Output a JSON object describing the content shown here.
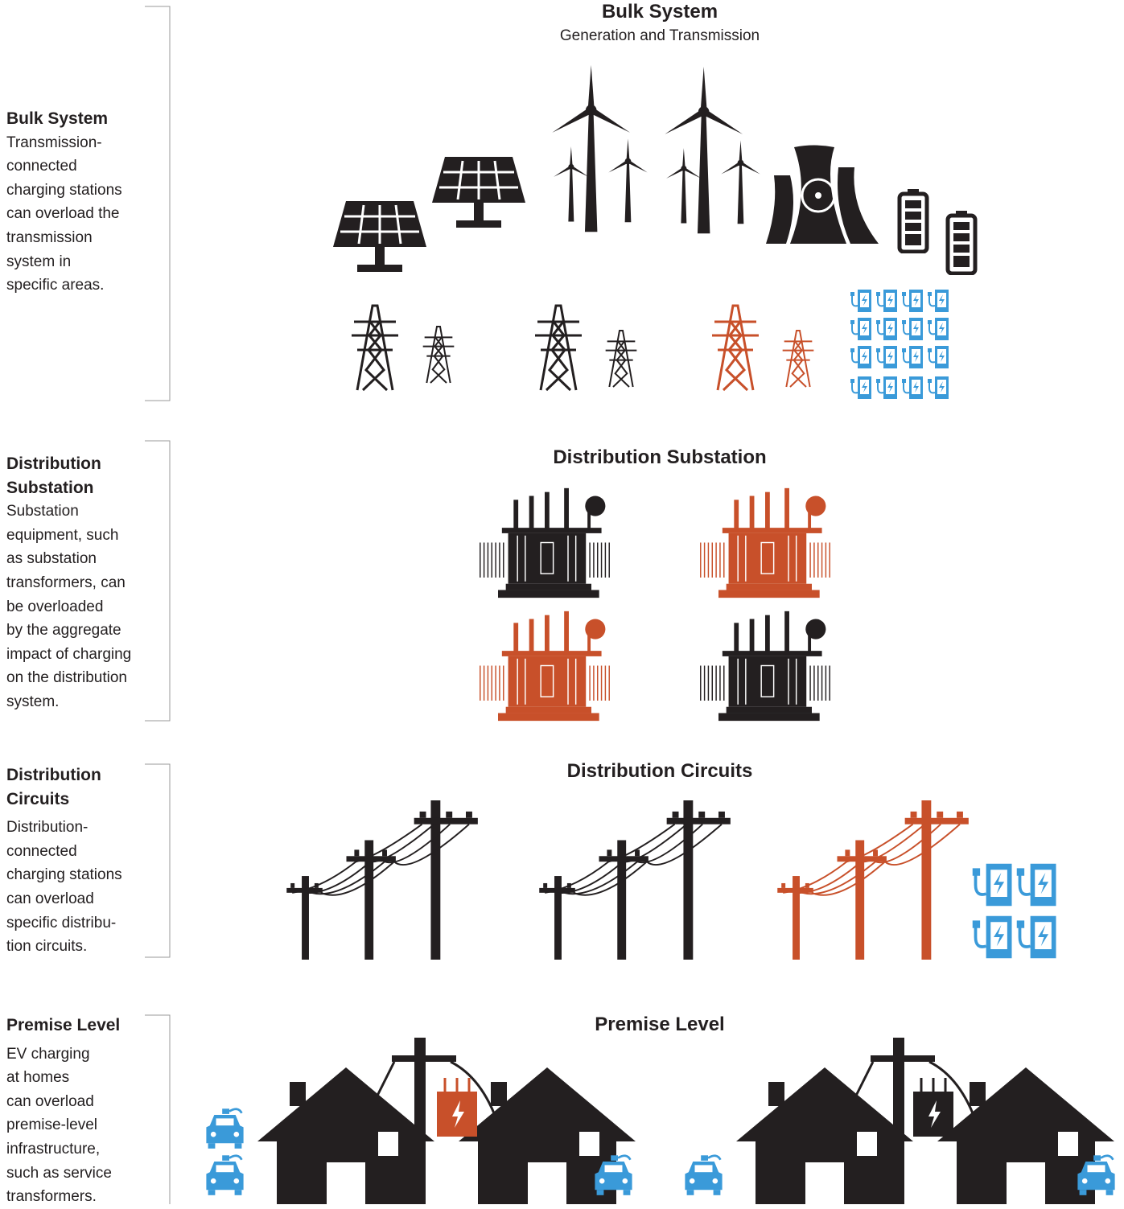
{
  "sections": [
    {
      "side_title_lines": [
        "Bulk System"
      ],
      "description_lines": [
        "Transmission-",
        "connected",
        "charging stations",
        "can overload the",
        "transmission",
        "system in",
        "specific areas."
      ],
      "heading": "Bulk System",
      "subheading": "Generation and Transmission"
    },
    {
      "side_title_lines": [
        "Distribution",
        "Substation"
      ],
      "description_lines": [
        "Substation",
        "equipment, such",
        "as substation",
        "transformers, can",
        "be overloaded",
        "by the aggregate",
        "impact of charging",
        "on the distribution",
        "system."
      ],
      "heading": "Distribution Substation"
    },
    {
      "side_title_lines": [
        "Distribution",
        "Circuits"
      ],
      "description_lines": [
        "Distribution-",
        "connected",
        "charging stations",
        "can overload",
        "specific distribu-",
        "tion circuits."
      ],
      "heading": "Distribution Circuits"
    },
    {
      "side_title_lines": [
        "Premise Level"
      ],
      "description_lines": [
        "EV charging",
        "at homes",
        "can overload",
        "premise-level",
        "infrastructure,",
        "such as service",
        "transformers."
      ],
      "heading": "Premise Level"
    }
  ]
}
